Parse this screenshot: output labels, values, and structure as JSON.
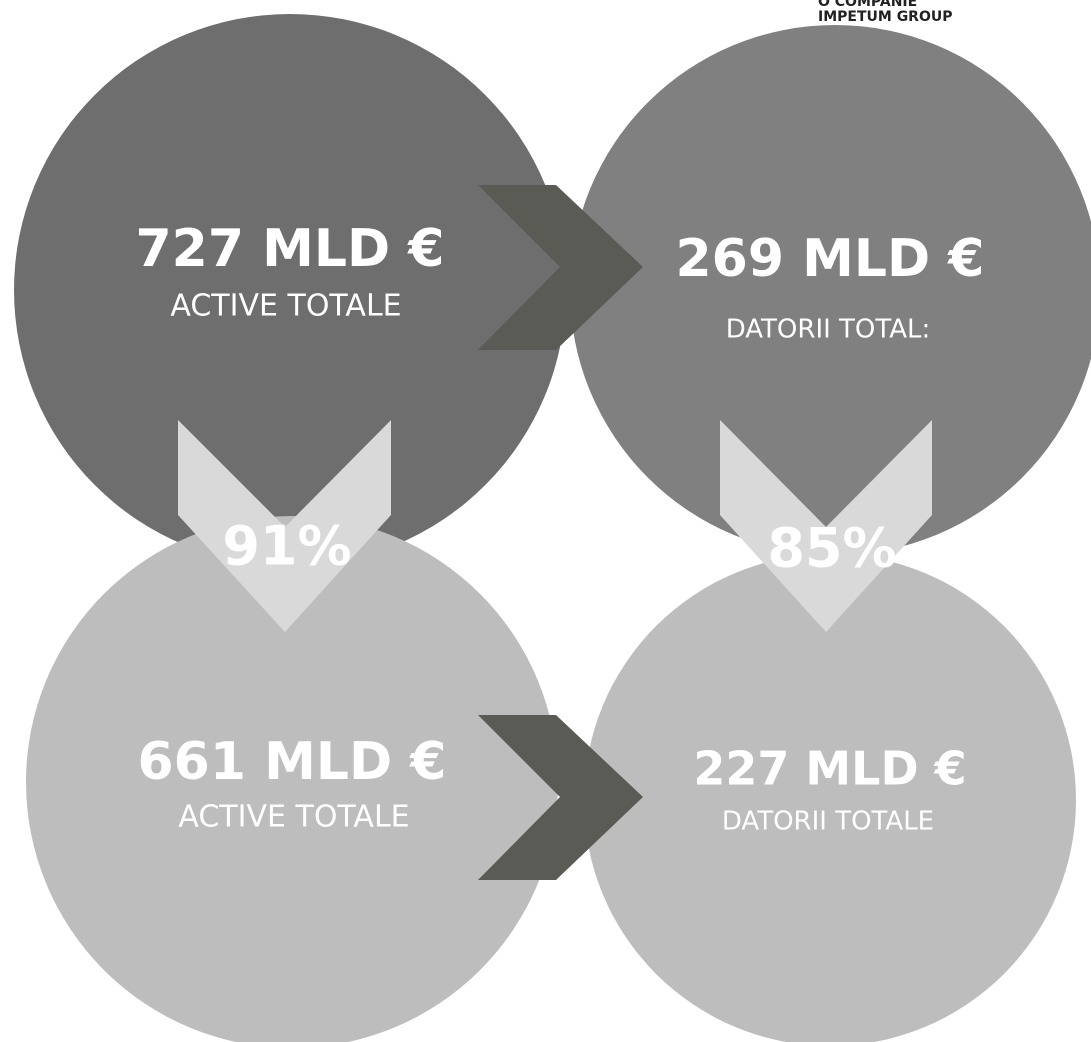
{
  "header": {
    "tagline": "O COMPANIE",
    "brand": "IMPETUM GROUP"
  },
  "nodes": [
    {
      "value": "727 MLD €",
      "label": "ACTIVE TOTALE"
    },
    {
      "value": "269 MLD €",
      "label": "DATORII TOTAL:"
    },
    {
      "value": "661 MLD €",
      "label": "ACTIVE TOTALE"
    },
    {
      "value": "227 MLD €",
      "label": "DATORII TOTALE"
    }
  ],
  "ratios": [
    "91%",
    "85%"
  ]
}
